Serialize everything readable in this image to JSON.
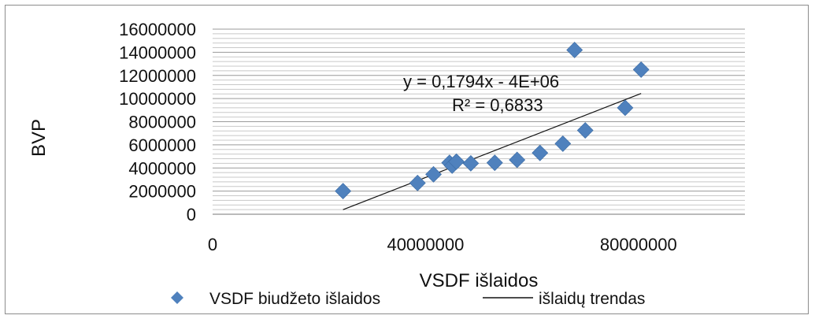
{
  "chart_data": {
    "type": "scatter",
    "xlabel": "VSDF  išlaidos",
    "ylabel": "BVP",
    "xlim": [
      0,
      100000000
    ],
    "ylim": [
      0,
      16000000
    ],
    "x_ticks": [
      0,
      40000000,
      80000000
    ],
    "x_tick_labels": [
      "0",
      "40000000",
      "80000000"
    ],
    "y_ticks": [
      0,
      2000000,
      4000000,
      6000000,
      8000000,
      10000000,
      12000000,
      14000000,
      16000000
    ],
    "y_tick_labels": [
      "0",
      "2000000",
      "4000000",
      "6000000",
      "8000000",
      "10000000",
      "12000000",
      "14000000",
      "16000000"
    ],
    "grid": true,
    "legend_position": "bottom",
    "series": [
      {
        "name": "VSDF biudžeto išlaidos",
        "kind": "scatter",
        "color": "#4f81bd",
        "marker": "diamond",
        "points": [
          [
            24500000,
            2000000
          ],
          [
            38500000,
            2700000
          ],
          [
            41500000,
            3450000
          ],
          [
            44500000,
            4450000
          ],
          [
            45000000,
            4200000
          ],
          [
            45800000,
            4550000
          ],
          [
            48500000,
            4400000
          ],
          [
            53000000,
            4450000
          ],
          [
            57200000,
            4700000
          ],
          [
            61500000,
            5300000
          ],
          [
            65800000,
            6100000
          ],
          [
            70000000,
            7250000
          ],
          [
            77500000,
            9200000
          ],
          [
            68000000,
            14200000
          ],
          [
            80500000,
            12500000
          ]
        ]
      },
      {
        "name": "išlaidų trendas",
        "kind": "line",
        "color": "#111111",
        "slope": 0.1794,
        "intercept": -4000000,
        "x_range": [
          24500000,
          80500000
        ]
      }
    ],
    "annotations": {
      "equation": "y = 0,1794x - 4E+06",
      "r_squared": "R² = 0,6833"
    }
  }
}
